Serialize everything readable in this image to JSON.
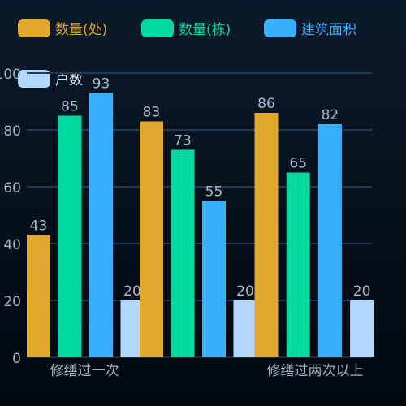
{
  "chart_data": {
    "type": "bar",
    "categories": [
      "修缮过一次",
      "修缮过两次以上"
    ],
    "series": [
      {
        "name": "数量(处)",
        "color": "#e0a82e",
        "values": [
          43,
          83
        ]
      },
      {
        "name": "数量(栋)",
        "color": "#00d9a0",
        "values": [
          85,
          73
        ]
      },
      {
        "name": "建筑面积",
        "color": "#39b0ff",
        "values": [
          93,
          55
        ]
      },
      {
        "name": "户数",
        "color": "#b3d8ff",
        "values": [
          20,
          20
        ]
      }
    ],
    "series_overflow": [
      {
        "name": "数量(处)",
        "color": "#e0a82e",
        "values": [
          86
        ]
      },
      {
        "name": "数量(栋)",
        "color": "#00d9a0",
        "values": [
          65
        ]
      },
      {
        "name": "建筑面积",
        "color": "#39b0ff",
        "values": [
          82
        ]
      },
      {
        "name": "户数",
        "color": "#b3d8ff",
        "values": [
          20
        ]
      }
    ],
    "y_ticks": [
      "0",
      "20",
      "40",
      "60",
      "80",
      "100"
    ],
    "ylim": [
      0,
      100
    ],
    "grid": true,
    "legend_position": "top",
    "title": "",
    "xlabel": "",
    "ylabel": ""
  }
}
